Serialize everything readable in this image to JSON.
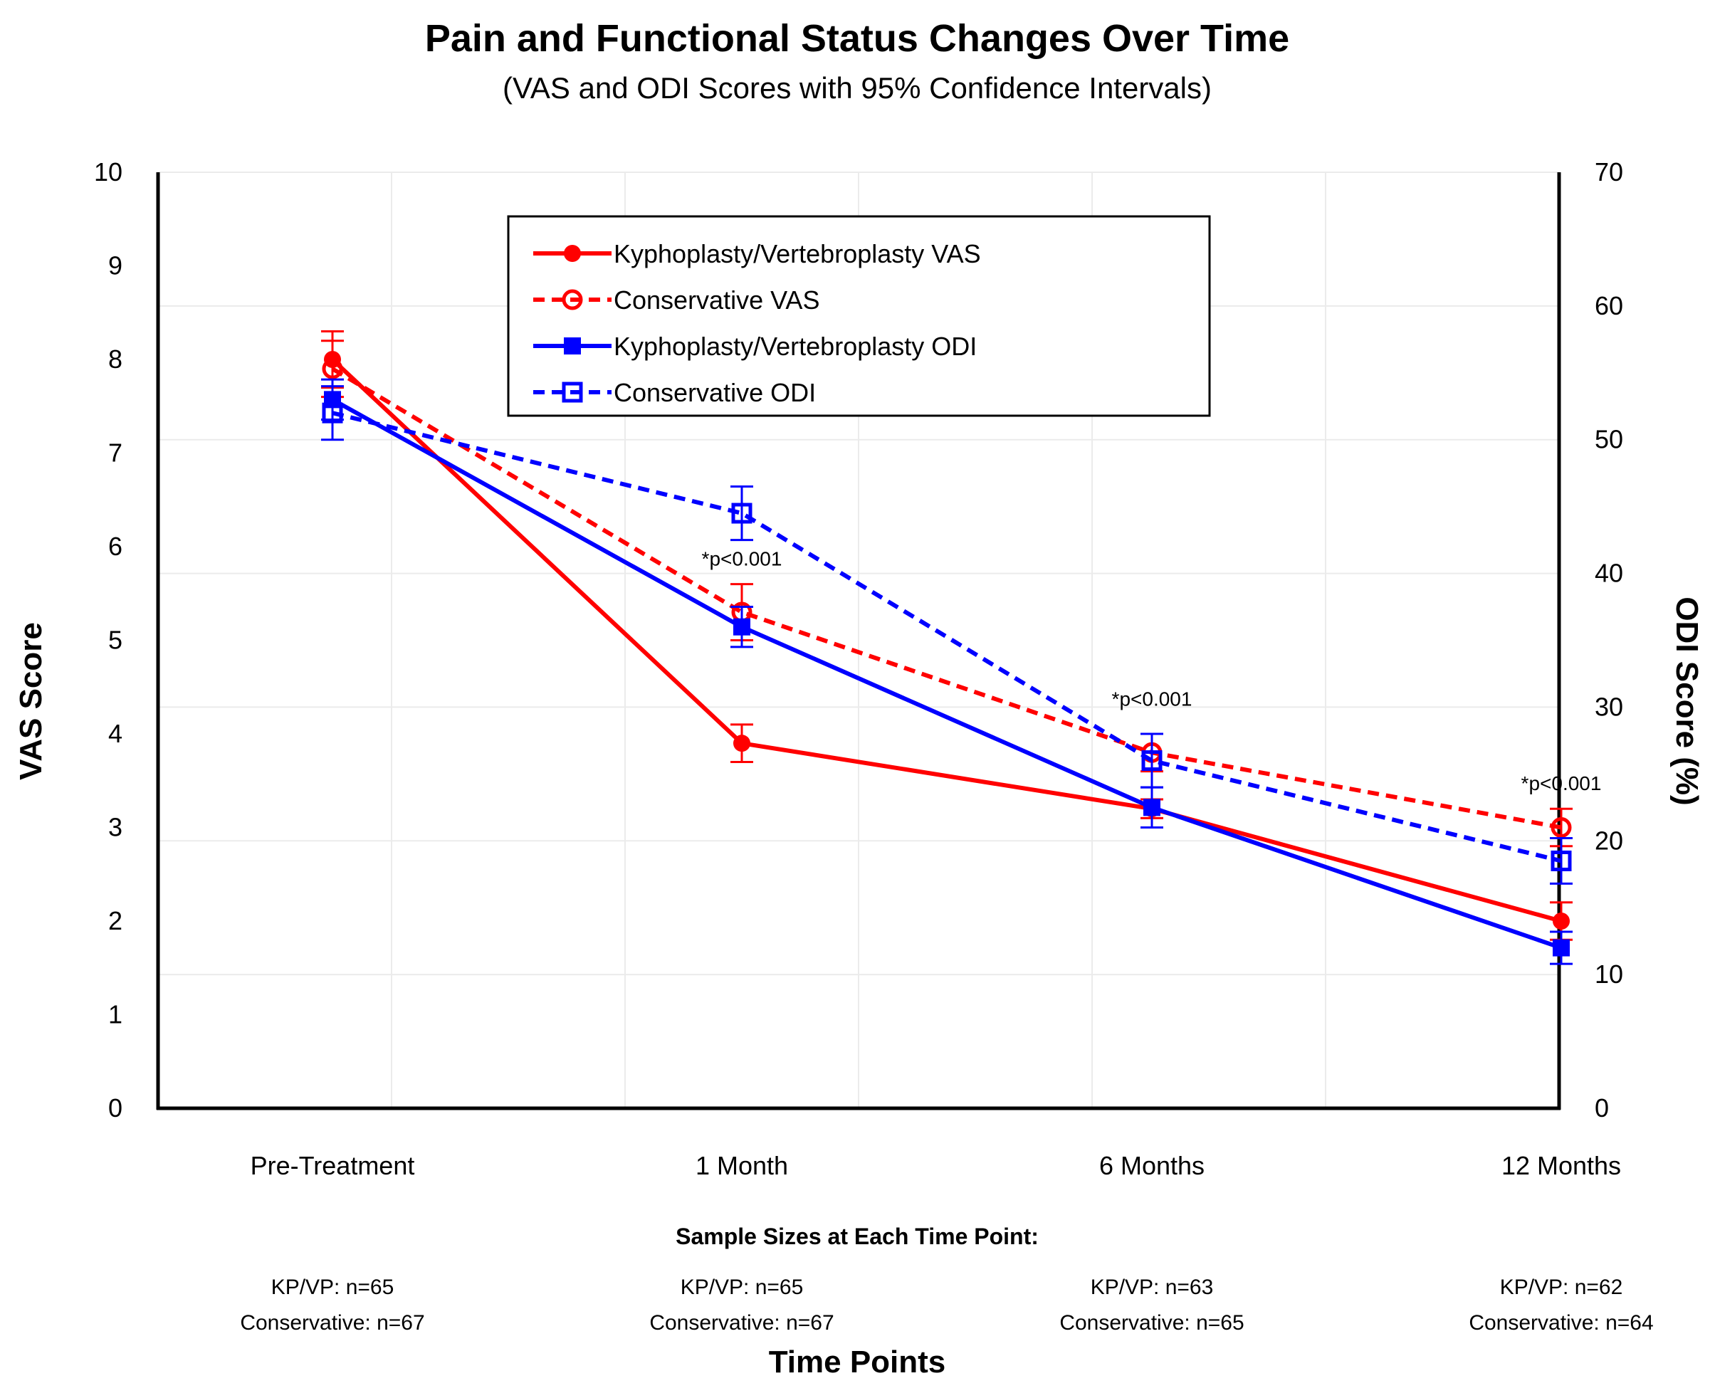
{
  "chart_data": {
    "type": "line",
    "title": "Pain and Functional Status Changes Over Time",
    "subtitle": "(VAS and ODI Scores with 95% Confidence Intervals)",
    "xlabel": "Time Points",
    "ylabel": "VAS Score",
    "ylabel_right": "ODI Score (%)",
    "ylim": [
      0,
      10
    ],
    "ylim_right": [
      0,
      70
    ],
    "yticks": [
      0,
      1,
      2,
      3,
      4,
      5,
      6,
      7,
      8,
      9,
      10
    ],
    "yticks_right": [
      0,
      10,
      20,
      30,
      40,
      50,
      60,
      70
    ],
    "categories": [
      "Pre-Treatment",
      "1 Month",
      "6 Months",
      "12 Months"
    ],
    "grid": true,
    "legend_position": "top-center",
    "series": [
      {
        "name": "Kyphoplasty/Vertebroplasty VAS",
        "axis": "left",
        "color": "#ff0000",
        "line_style": "solid",
        "marker": "filled-circle",
        "values": [
          8.0,
          3.9,
          3.2,
          2.0
        ],
        "ci_low": [
          7.7,
          3.7,
          3.1,
          1.8
        ],
        "ci_high": [
          8.3,
          4.1,
          3.3,
          2.2
        ]
      },
      {
        "name": "Conservative VAS",
        "axis": "left",
        "color": "#ff0000",
        "line_style": "dashed",
        "marker": "open-circle",
        "values": [
          7.9,
          5.3,
          3.8,
          3.0
        ],
        "ci_low": [
          7.6,
          5.0,
          3.6,
          2.8
        ],
        "ci_high": [
          8.2,
          5.6,
          4.0,
          3.2
        ]
      },
      {
        "name": "Kyphoplasty/Vertebroplasty ODI",
        "axis": "right",
        "color": "#0000ff",
        "line_style": "solid",
        "marker": "filled-square",
        "values": [
          53,
          36,
          22.5,
          12
        ],
        "ci_low": [
          51.5,
          34.5,
          21,
          10.8
        ],
        "ci_high": [
          54.5,
          37.5,
          24,
          13.2
        ]
      },
      {
        "name": "Conservative ODI",
        "axis": "right",
        "color": "#0000ff",
        "line_style": "dashed",
        "marker": "open-square",
        "values": [
          52,
          44.5,
          26,
          18.5
        ],
        "ci_low": [
          50,
          42.5,
          24,
          16.8
        ],
        "ci_high": [
          54,
          46.5,
          28,
          20.2
        ]
      }
    ],
    "annotations": [
      {
        "category_index": 1,
        "text": "*p<0.001",
        "y": 5.8
      },
      {
        "category_index": 2,
        "text": "*p<0.001",
        "y": 4.3
      },
      {
        "category_index": 3,
        "text": "*p<0.001",
        "y": 3.4
      }
    ],
    "sample_sizes": {
      "heading": "Sample Sizes at Each Time Point:",
      "groups": [
        {
          "kp": "KP/VP: n=65",
          "cons": "Conservative: n=67"
        },
        {
          "kp": "KP/VP: n=65",
          "cons": "Conservative: n=67"
        },
        {
          "kp": "KP/VP: n=63",
          "cons": "Conservative: n=65"
        },
        {
          "kp": "KP/VP: n=62",
          "cons": "Conservative: n=64"
        }
      ]
    }
  }
}
